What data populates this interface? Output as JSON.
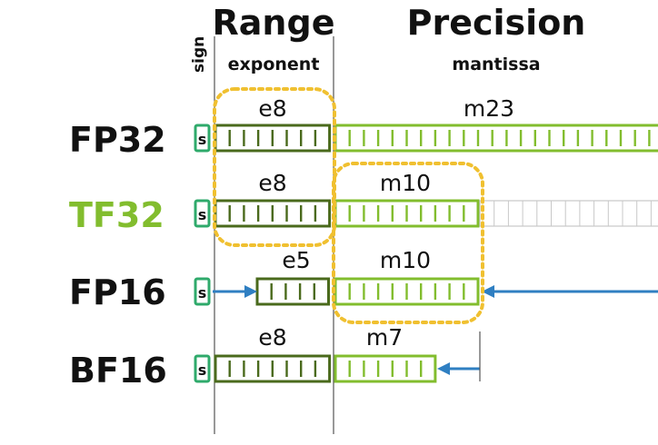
{
  "headers": {
    "sign": "sign",
    "range": "Range",
    "range_sub": "exponent",
    "precision": "Precision",
    "precision_sub": "mantissa"
  },
  "sign_glyph": "s",
  "colors": {
    "exponent": "#4a6a1c",
    "mantissa": "#82bd2e",
    "sign": "#2faa6b",
    "unused": "#c8c8c8",
    "highlight": "#f0c030",
    "arrow": "#2f7fc2",
    "fp_label": "#111111",
    "tf_label": "#82bd2e"
  },
  "formats": [
    {
      "id": "fp32",
      "name": "FP32",
      "exp_label": "e8",
      "exp_bits": 8,
      "man_label": "m23",
      "man_bits": 23,
      "unused_bits": 0
    },
    {
      "id": "tf32",
      "name": "TF32",
      "exp_label": "e8",
      "exp_bits": 8,
      "man_label": "m10",
      "man_bits": 10,
      "unused_bits": 13
    },
    {
      "id": "fp16",
      "name": "FP16",
      "exp_label": "e5",
      "exp_bits": 5,
      "man_label": "m10",
      "man_bits": 10,
      "unused_bits": 0
    },
    {
      "id": "bf16",
      "name": "BF16",
      "exp_label": "e8",
      "exp_bits": 8,
      "man_label": "m7",
      "man_bits": 7,
      "unused_bits": 0
    }
  ]
}
